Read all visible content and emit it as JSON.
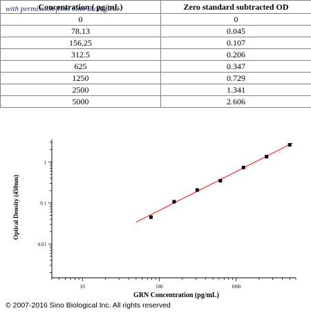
{
  "watermark": "with permission from Sino Biological",
  "table": {
    "headers": [
      "Concentration ( pg/mL)",
      "Zero standard subtracted OD"
    ],
    "rows": [
      [
        "0",
        "0"
      ],
      [
        "78.13",
        "0.045"
      ],
      [
        "156.25",
        "0.107"
      ],
      [
        "312.5",
        "0.206"
      ],
      [
        "625",
        "0.347"
      ],
      [
        "1250",
        "0.729"
      ],
      [
        "2500",
        "1.341"
      ],
      [
        "5000",
        "2.606"
      ]
    ]
  },
  "chart_data": {
    "type": "scatter",
    "xlabel": "GRN Concentration (pg/mL)",
    "ylabel": "Optical Density (450nm)",
    "x_scale": "log",
    "y_scale": "log",
    "xlim": [
      4,
      6000
    ],
    "ylim": [
      0.0015,
      3.5
    ],
    "x_ticks": [
      10,
      100,
      1000
    ],
    "x_tick_labels": [
      "10",
      "100",
      "1000"
    ],
    "y_ticks": [
      0.01,
      0.1,
      1
    ],
    "y_tick_labels": [
      "0.01",
      "0.1",
      "1"
    ],
    "points": {
      "x": [
        78.13,
        156.25,
        312.5,
        625,
        1250,
        2500,
        5000
      ],
      "y": [
        0.045,
        0.107,
        0.206,
        0.347,
        0.729,
        1.341,
        2.606
      ]
    },
    "fit_line": {
      "x": [
        50,
        5500
      ],
      "y": [
        0.034,
        2.9
      ]
    },
    "point_color": "#000000",
    "fit_color": "#ff0000",
    "grid": false
  },
  "copyright": "© 2007-2016 Sino Biological Inc. All rights reserved"
}
